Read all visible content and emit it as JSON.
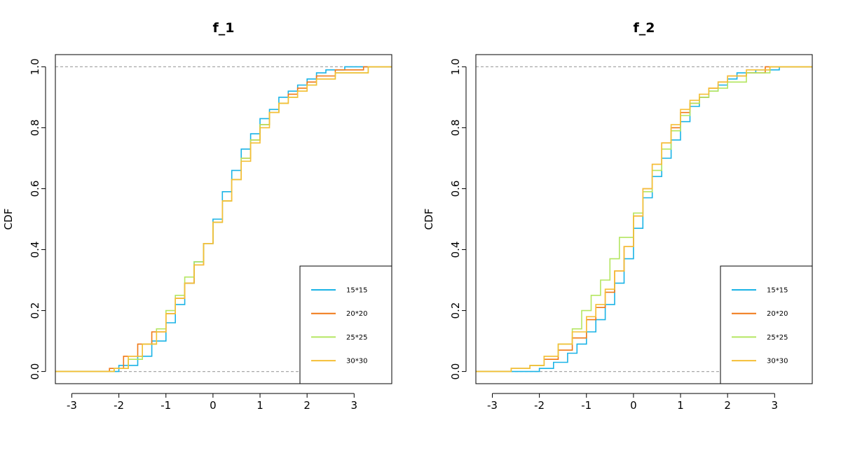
{
  "colors": {
    "s15": "#1ab3e6",
    "s20": "#f07816",
    "s25": "#b4e661",
    "s30": "#f5bf36",
    "ref": "#a8a8a8"
  },
  "chart_data": [
    {
      "type": "line",
      "title": "f_1",
      "xlabel": "",
      "ylabel": "CDF",
      "xlim": [
        -3.35,
        3.8
      ],
      "ylim": [
        -0.04,
        1.04
      ],
      "xticks": [
        "-3",
        "-2",
        "-1",
        "0",
        "1",
        "2",
        "3"
      ],
      "yticks": [
        "0.0",
        "0.2",
        "0.4",
        "0.6",
        "0.8",
        "1.0"
      ],
      "reference_lines": [
        0,
        1
      ],
      "legend": {
        "position": "bottom-right",
        "entries": [
          "15*15",
          "20*20",
          "25*25",
          "30*30"
        ]
      },
      "series": [
        {
          "name": "15*15",
          "color": "#1ab3e6",
          "x": [
            -2.4,
            -2.0,
            -1.6,
            -1.3,
            -1.0,
            -0.8,
            -0.6,
            -0.4,
            -0.2,
            0.0,
            0.2,
            0.4,
            0.6,
            0.8,
            1.0,
            1.2,
            1.4,
            1.6,
            1.8,
            2.0,
            2.2,
            2.4,
            2.8,
            3.2
          ],
          "y": [
            0.0,
            0.02,
            0.05,
            0.1,
            0.16,
            0.22,
            0.29,
            0.36,
            0.42,
            0.5,
            0.59,
            0.66,
            0.73,
            0.78,
            0.83,
            0.86,
            0.9,
            0.92,
            0.94,
            0.96,
            0.98,
            0.99,
            1.0,
            1.0
          ]
        },
        {
          "name": "20*20",
          "color": "#f07816",
          "x": [
            -2.6,
            -2.2,
            -1.9,
            -1.6,
            -1.3,
            -1.0,
            -0.8,
            -0.6,
            -0.4,
            -0.2,
            0.0,
            0.2,
            0.4,
            0.6,
            0.8,
            1.0,
            1.2,
            1.4,
            1.6,
            1.8,
            2.0,
            2.2,
            2.6,
            3.2
          ],
          "y": [
            0.0,
            0.01,
            0.05,
            0.09,
            0.13,
            0.19,
            0.24,
            0.29,
            0.35,
            0.42,
            0.49,
            0.56,
            0.63,
            0.7,
            0.76,
            0.81,
            0.85,
            0.88,
            0.91,
            0.93,
            0.95,
            0.97,
            0.99,
            1.0
          ]
        },
        {
          "name": "25*25",
          "color": "#b4e661",
          "x": [
            -2.5,
            -2.1,
            -1.8,
            -1.5,
            -1.2,
            -1.0,
            -0.8,
            -0.6,
            -0.4,
            -0.2,
            0.0,
            0.2,
            0.4,
            0.6,
            0.8,
            1.0,
            1.2,
            1.4,
            1.6,
            1.8,
            2.0,
            2.2,
            2.6,
            3.3
          ],
          "y": [
            0.0,
            0.01,
            0.04,
            0.09,
            0.14,
            0.2,
            0.25,
            0.31,
            0.36,
            0.42,
            0.49,
            0.56,
            0.63,
            0.7,
            0.76,
            0.81,
            0.85,
            0.88,
            0.9,
            0.92,
            0.94,
            0.96,
            0.98,
            1.0
          ]
        },
        {
          "name": "30*30",
          "color": "#f5bf36",
          "x": [
            -2.5,
            -2.1,
            -1.8,
            -1.5,
            -1.2,
            -1.0,
            -0.8,
            -0.6,
            -0.4,
            -0.2,
            0.0,
            0.2,
            0.4,
            0.6,
            0.8,
            1.0,
            1.2,
            1.4,
            1.6,
            1.8,
            2.0,
            2.2,
            2.6,
            3.3
          ],
          "y": [
            0.0,
            0.01,
            0.05,
            0.09,
            0.13,
            0.19,
            0.24,
            0.29,
            0.35,
            0.42,
            0.49,
            0.56,
            0.63,
            0.69,
            0.75,
            0.8,
            0.85,
            0.88,
            0.9,
            0.92,
            0.94,
            0.96,
            0.98,
            1.0
          ]
        }
      ]
    },
    {
      "type": "line",
      "title": "f_2",
      "xlabel": "",
      "ylabel": "CDF",
      "xlim": [
        -3.35,
        3.8
      ],
      "ylim": [
        -0.04,
        1.04
      ],
      "xticks": [
        "-3",
        "-2",
        "-1",
        "0",
        "1",
        "2",
        "3"
      ],
      "yticks": [
        "0.0",
        "0.2",
        "0.4",
        "0.6",
        "0.8",
        "1.0"
      ],
      "reference_lines": [
        0,
        1
      ],
      "legend": {
        "position": "bottom-right",
        "entries": [
          "15*15",
          "20*20",
          "25*25",
          "30*30"
        ]
      },
      "series": [
        {
          "name": "15*15",
          "color": "#1ab3e6",
          "x": [
            -2.4,
            -2.0,
            -1.7,
            -1.4,
            -1.2,
            -1.0,
            -0.8,
            -0.6,
            -0.4,
            -0.2,
            0.0,
            0.2,
            0.4,
            0.6,
            0.8,
            1.0,
            1.2,
            1.4,
            1.6,
            1.8,
            2.0,
            2.2,
            2.6,
            3.1
          ],
          "y": [
            0.0,
            0.01,
            0.03,
            0.06,
            0.09,
            0.13,
            0.17,
            0.22,
            0.29,
            0.37,
            0.47,
            0.57,
            0.64,
            0.7,
            0.76,
            0.82,
            0.87,
            0.9,
            0.92,
            0.94,
            0.96,
            0.98,
            0.99,
            1.0
          ]
        },
        {
          "name": "20*20",
          "color": "#f07816",
          "x": [
            -3.2,
            -2.6,
            -2.2,
            -1.9,
            -1.6,
            -1.3,
            -1.0,
            -0.8,
            -0.6,
            -0.4,
            -0.2,
            0.0,
            0.2,
            0.4,
            0.6,
            0.8,
            1.0,
            1.2,
            1.4,
            1.6,
            1.8,
            2.0,
            2.4,
            2.8
          ],
          "y": [
            0.0,
            0.01,
            0.02,
            0.04,
            0.07,
            0.11,
            0.17,
            0.21,
            0.26,
            0.33,
            0.41,
            0.51,
            0.6,
            0.68,
            0.75,
            0.8,
            0.85,
            0.88,
            0.9,
            0.93,
            0.95,
            0.97,
            0.98,
            1.0
          ]
        },
        {
          "name": "25*25",
          "color": "#b4e661",
          "x": [
            -3.3,
            -2.6,
            -2.2,
            -1.9,
            -1.6,
            -1.3,
            -1.1,
            -0.9,
            -0.7,
            -0.5,
            -0.3,
            0.0,
            0.2,
            0.4,
            0.6,
            0.8,
            1.0,
            1.2,
            1.4,
            1.6,
            1.8,
            2.0,
            2.4,
            2.9
          ],
          "y": [
            0.0,
            0.01,
            0.02,
            0.05,
            0.09,
            0.14,
            0.2,
            0.25,
            0.3,
            0.37,
            0.44,
            0.52,
            0.59,
            0.66,
            0.73,
            0.79,
            0.84,
            0.88,
            0.9,
            0.92,
            0.93,
            0.95,
            0.98,
            1.0
          ]
        },
        {
          "name": "30*30",
          "color": "#f5bf36",
          "x": [
            -3.2,
            -2.6,
            -2.2,
            -1.9,
            -1.6,
            -1.3,
            -1.0,
            -0.8,
            -0.6,
            -0.4,
            -0.2,
            0.0,
            0.2,
            0.4,
            0.6,
            0.8,
            1.0,
            1.2,
            1.4,
            1.6,
            1.8,
            2.0,
            2.4,
            2.9
          ],
          "y": [
            0.0,
            0.01,
            0.02,
            0.05,
            0.09,
            0.13,
            0.18,
            0.22,
            0.27,
            0.33,
            0.41,
            0.51,
            0.6,
            0.68,
            0.75,
            0.81,
            0.86,
            0.89,
            0.91,
            0.93,
            0.95,
            0.97,
            0.99,
            1.0
          ]
        }
      ]
    }
  ]
}
